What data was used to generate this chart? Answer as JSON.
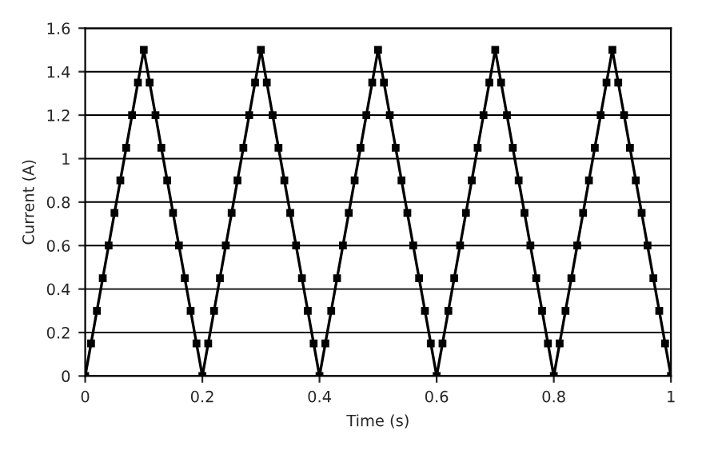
{
  "chart_data": {
    "type": "line",
    "xlabel": "Time (s)",
    "ylabel": "Current (A)",
    "x": [
      0,
      0.01,
      0.02,
      0.03,
      0.04,
      0.05,
      0.06,
      0.07,
      0.08,
      0.09,
      0.1,
      0.11,
      0.12,
      0.13,
      0.14,
      0.15,
      0.16,
      0.17,
      0.18,
      0.19,
      0.2,
      0.21,
      0.22,
      0.23,
      0.24,
      0.25,
      0.26,
      0.27,
      0.28,
      0.29,
      0.3,
      0.31,
      0.32,
      0.33,
      0.34,
      0.35,
      0.36,
      0.37,
      0.38,
      0.39,
      0.4,
      0.41,
      0.42,
      0.43,
      0.44,
      0.45,
      0.46,
      0.47,
      0.48,
      0.49,
      0.5,
      0.51,
      0.52,
      0.53,
      0.54,
      0.55,
      0.56,
      0.57,
      0.58,
      0.59,
      0.6,
      0.61,
      0.62,
      0.63,
      0.64,
      0.65,
      0.66,
      0.67,
      0.68,
      0.69,
      0.7,
      0.71,
      0.72,
      0.73,
      0.74,
      0.75,
      0.76,
      0.77,
      0.78,
      0.79,
      0.8,
      0.81,
      0.82,
      0.83,
      0.84,
      0.85,
      0.86,
      0.87,
      0.88,
      0.89,
      0.9,
      0.91,
      0.92,
      0.93,
      0.94,
      0.95,
      0.96,
      0.97,
      0.98,
      0.99,
      1
    ],
    "series": [
      {
        "color": "#000000",
        "values": [
          0,
          0.15,
          0.3,
          0.45,
          0.6,
          0.75,
          0.9,
          1.05,
          1.2,
          1.35,
          1.5,
          1.35,
          1.2,
          1.05,
          0.9,
          0.75,
          0.6,
          0.45,
          0.3,
          0.15,
          0,
          0.15,
          0.3,
          0.45,
          0.6,
          0.75,
          0.9,
          1.05,
          1.2,
          1.35,
          1.5,
          1.35,
          1.2,
          1.05,
          0.9,
          0.75,
          0.6,
          0.45,
          0.3,
          0.15,
          0,
          0.15,
          0.3,
          0.45,
          0.6,
          0.75,
          0.9,
          1.05,
          1.2,
          1.35,
          1.5,
          1.35,
          1.2,
          1.05,
          0.9,
          0.75,
          0.6,
          0.45,
          0.3,
          0.15,
          0,
          0.15,
          0.3,
          0.45,
          0.6,
          0.75,
          0.9,
          1.05,
          1.2,
          1.35,
          1.5,
          1.35,
          1.2,
          1.05,
          0.9,
          0.75,
          0.6,
          0.45,
          0.3,
          0.15,
          0,
          0.15,
          0.3,
          0.45,
          0.6,
          0.75,
          0.9,
          1.05,
          1.2,
          1.35,
          1.5,
          1.35,
          1.2,
          1.05,
          0.9,
          0.75,
          0.6,
          0.45,
          0.3,
          0.15,
          0
        ]
      }
    ],
    "xlim": [
      0,
      1
    ],
    "xticks": [
      0,
      0.2,
      0.4,
      0.6,
      0.8,
      1
    ],
    "ylim": [
      0,
      1.6
    ],
    "yticks": [
      0,
      0.2,
      0.4,
      0.6,
      0.8,
      1,
      1.2,
      1.4,
      1.6
    ],
    "grid": "y",
    "marker": "square",
    "line_style": "solid"
  }
}
